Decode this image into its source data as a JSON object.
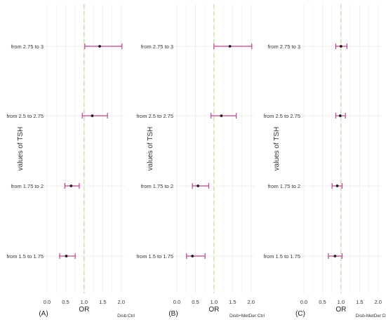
{
  "chart_data": [
    {
      "type": "forest",
      "panel_label": "(A)",
      "comparison": "Disb:Ctrl",
      "xlabel": "OR",
      "ylabel": "values of TSH",
      "xlim": [
        0.0,
        2.1
      ],
      "xticks": [
        "0.0",
        "0.5",
        "1.0",
        "1.5",
        "2.0"
      ],
      "reference_line": 1.0,
      "categories": [
        "from 2.75 to 3",
        "from 2.5 to 2.75",
        "from 1.75 to 2",
        "from 1.5 to 1.75"
      ],
      "estimate": [
        1.42,
        1.22,
        0.65,
        0.52
      ],
      "ci_low": [
        1.02,
        0.95,
        0.48,
        0.34
      ],
      "ci_high": [
        2.02,
        1.63,
        0.87,
        0.76
      ]
    },
    {
      "type": "forest",
      "panel_label": "(B)",
      "comparison": "Disb+MetDer:Ctrl",
      "xlabel": "OR",
      "ylabel": "values of TSH",
      "xlim": [
        0.0,
        2.1
      ],
      "xticks": [
        "0.0",
        "0.5",
        "1.0",
        "1.5",
        "2.0"
      ],
      "reference_line": 1.0,
      "categories": [
        "from 2.75 to 3",
        "from 2.5 to 2.75",
        "from 1.75 to 2",
        "from 1.5 to 1.75"
      ],
      "estimate": [
        1.43,
        1.2,
        0.57,
        0.42
      ],
      "ci_low": [
        1.0,
        0.92,
        0.42,
        0.26
      ],
      "ci_high": [
        2.02,
        1.6,
        0.86,
        0.76
      ]
    },
    {
      "type": "forest",
      "panel_label": "(C)",
      "comparison": "Disb-MetDer:Disb",
      "xlabel": "OR",
      "ylabel": "values of TSH",
      "xlim": [
        0.0,
        2.1
      ],
      "xticks": [
        "0.0",
        "0.5",
        "1.0",
        "1.5",
        "2.0"
      ],
      "reference_line": 1.0,
      "categories": [
        "from 2.75 to 3",
        "from 2.5 to 2.75",
        "from 1.75 to 2",
        "from 1.5 to 1.75"
      ],
      "estimate": [
        1.0,
        0.98,
        0.9,
        0.84
      ],
      "ci_low": [
        0.86,
        0.86,
        0.76,
        0.66
      ],
      "ci_high": [
        1.16,
        1.12,
        1.03,
        1.03
      ]
    }
  ],
  "colors": {
    "ci_line": "#c0428a",
    "point": "#1a1a1a",
    "reference_line": "#c9dd9a",
    "grid": "#ececec",
    "text": "#333333"
  }
}
